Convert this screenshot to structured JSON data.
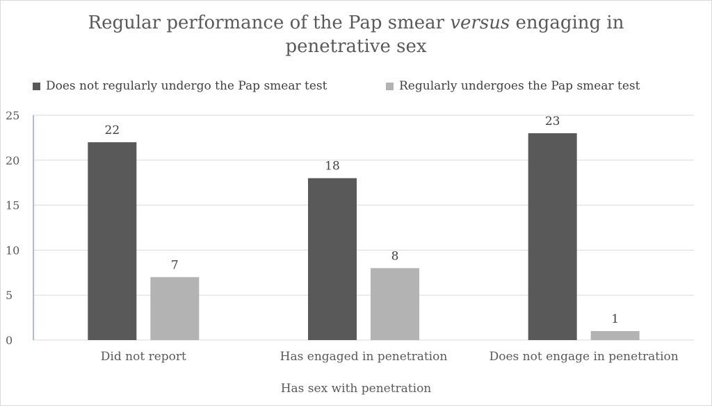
{
  "chart_data": {
    "type": "bar",
    "title": {
      "part1": "Regular performance of the Pap smear ",
      "part2_italic": "versus",
      "part3": " engaging in",
      "line2": "penetrative sex"
    },
    "xlabel": "Has sex with penetration",
    "ylabel": "",
    "categories": [
      "Did not report",
      "Has engaged in penetration",
      "Does not engage in penetration"
    ],
    "series": [
      {
        "name": "Does not regularly undergo the Pap smear test",
        "color": "#595959",
        "values": [
          22,
          18,
          23
        ]
      },
      {
        "name": "Regularly undergoes the Pap smear test",
        "color": "#b3b3b3",
        "values": [
          7,
          8,
          1
        ]
      }
    ],
    "ylim": [
      0,
      25
    ],
    "yticks": [
      0,
      5,
      10,
      15,
      20,
      25
    ],
    "grid": true,
    "legend_position": "top"
  }
}
